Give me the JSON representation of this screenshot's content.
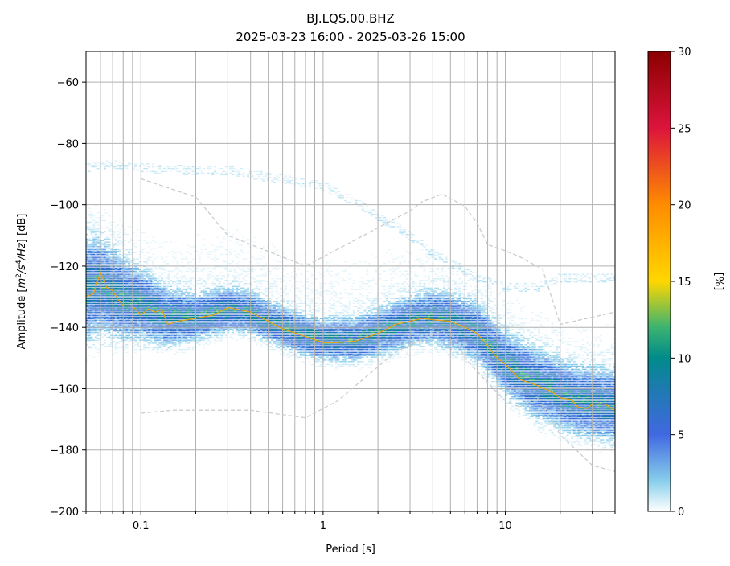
{
  "chart_data": {
    "type": "heatmap",
    "title": "BJ.LQS.00.BHZ",
    "subtitle": "2025-03-23 16:00 - 2025-03-26 15:00",
    "xlabel": "Period [s]",
    "ylabel_parts": [
      "Amplitude [",
      "m",
      "2",
      "/",
      "s",
      "4",
      "/",
      "Hz",
      "] [dB]"
    ],
    "xscale": "log",
    "xlim": [
      0.05,
      40
    ],
    "ylim": [
      -200,
      -50
    ],
    "xticks": [
      {
        "v": 0.1,
        "label": "0.1"
      },
      {
        "v": 1,
        "label": "1"
      },
      {
        "v": 10,
        "label": "10"
      }
    ],
    "yticks": [
      {
        "v": -60,
        "label": "−60"
      },
      {
        "v": -80,
        "label": "−80"
      },
      {
        "v": -100,
        "label": "−100"
      },
      {
        "v": -120,
        "label": "−120"
      },
      {
        "v": -140,
        "label": "−140"
      },
      {
        "v": -160,
        "label": "−160"
      },
      {
        "v": -180,
        "label": "−180"
      },
      {
        "v": -200,
        "label": "−200"
      }
    ],
    "grid": true,
    "colorbar": {
      "label": "[%]",
      "range": [
        0,
        30
      ],
      "ticks": [
        {
          "v": 0,
          "label": "0"
        },
        {
          "v": 5,
          "label": "5"
        },
        {
          "v": 10,
          "label": "10"
        },
        {
          "v": 15,
          "label": "15"
        },
        {
          "v": 20,
          "label": "20"
        },
        {
          "v": 25,
          "label": "25"
        },
        {
          "v": 30,
          "label": "30"
        }
      ],
      "stops": [
        {
          "v": 0,
          "color": "#ffffff"
        },
        {
          "v": 2,
          "color": "#87ceeb"
        },
        {
          "v": 5,
          "color": "#4169e1"
        },
        {
          "v": 8,
          "color": "#1e7ab0"
        },
        {
          "v": 10,
          "color": "#008b8b"
        },
        {
          "v": 12,
          "color": "#3cb371"
        },
        {
          "v": 15,
          "color": "#ffd700"
        },
        {
          "v": 20,
          "color": "#ff8c00"
        },
        {
          "v": 25,
          "color": "#dc143c"
        },
        {
          "v": 30,
          "color": "#8b0000"
        }
      ]
    },
    "mode_curve": {
      "color": "#e3a21a",
      "points": [
        [
          0.05,
          -130
        ],
        [
          0.055,
          -129
        ],
        [
          0.06,
          -122
        ],
        [
          0.065,
          -127
        ],
        [
          0.07,
          -128
        ],
        [
          0.075,
          -131
        ],
        [
          0.08,
          -133
        ],
        [
          0.09,
          -133
        ],
        [
          0.1,
          -136
        ],
        [
          0.11,
          -134
        ],
        [
          0.12,
          -135
        ],
        [
          0.13,
          -134
        ],
        [
          0.14,
          -139
        ],
        [
          0.16,
          -138
        ],
        [
          0.2,
          -137
        ],
        [
          0.25,
          -136
        ],
        [
          0.3,
          -133.5
        ],
        [
          0.4,
          -135
        ],
        [
          0.5,
          -138
        ],
        [
          0.6,
          -140.5
        ],
        [
          0.8,
          -143
        ],
        [
          1.0,
          -145
        ],
        [
          1.2,
          -145
        ],
        [
          1.5,
          -144.5
        ],
        [
          2.0,
          -142
        ],
        [
          2.5,
          -139
        ],
        [
          3.0,
          -138
        ],
        [
          3.5,
          -137
        ],
        [
          4.0,
          -137.5
        ],
        [
          5.0,
          -138
        ],
        [
          6.0,
          -140
        ],
        [
          7.0,
          -142
        ],
        [
          8.0,
          -146
        ],
        [
          9.0,
          -150
        ],
        [
          10,
          -152
        ],
        [
          12,
          -157
        ],
        [
          15,
          -159
        ],
        [
          18,
          -161
        ],
        [
          20,
          -163
        ],
        [
          23,
          -163.5
        ],
        [
          25,
          -166
        ],
        [
          28,
          -166.5
        ],
        [
          30,
          -165
        ],
        [
          35,
          -165
        ],
        [
          40,
          -167
        ]
      ]
    },
    "noise_models": [
      {
        "name": "",
        "color": "#cccccc",
        "points": [
          [
            0.1,
            -91.5
          ],
          [
            0.2,
            -97.5
          ],
          [
            0.3,
            -110
          ],
          [
            0.8,
            -120
          ],
          [
            1,
            -117
          ],
          [
            3,
            -102
          ],
          [
            3.5,
            -99
          ],
          [
            4.5,
            -96.5
          ],
          [
            6,
            -100.5
          ],
          [
            7,
            -106
          ],
          [
            8,
            -113
          ],
          [
            10,
            -115
          ],
          [
            12,
            -117
          ],
          [
            16,
            -121
          ],
          [
            20,
            -139
          ],
          [
            40,
            -135
          ]
        ]
      },
      {
        "name": "",
        "color": "#cccccc",
        "points": [
          [
            0.1,
            -168
          ],
          [
            0.15,
            -167
          ],
          [
            0.2,
            -167
          ],
          [
            0.4,
            -167
          ],
          [
            0.8,
            -169.5
          ],
          [
            1.2,
            -164
          ],
          [
            2.5,
            -148
          ],
          [
            3.5,
            -144
          ],
          [
            4.5,
            -141
          ],
          [
            5,
            -141
          ],
          [
            6,
            -150
          ],
          [
            8,
            -158
          ],
          [
            10,
            -164
          ],
          [
            12,
            -166
          ],
          [
            15,
            -163
          ],
          [
            20,
            -175
          ],
          [
            30,
            -185
          ],
          [
            40,
            -187
          ]
        ]
      }
    ],
    "density": {
      "median": [
        [
          0.05,
          -128
        ],
        [
          0.06,
          -127
        ],
        [
          0.08,
          -131
        ],
        [
          0.1,
          -133
        ],
        [
          0.14,
          -137
        ],
        [
          0.2,
          -137
        ],
        [
          0.3,
          -134.5
        ],
        [
          0.4,
          -135.5
        ],
        [
          0.5,
          -138.5
        ],
        [
          0.8,
          -143
        ],
        [
          1,
          -144.5
        ],
        [
          1.5,
          -144.5
        ],
        [
          2,
          -142
        ],
        [
          3,
          -138.5
        ],
        [
          4,
          -137
        ],
        [
          5,
          -138.5
        ],
        [
          7,
          -142
        ],
        [
          10,
          -152
        ],
        [
          15,
          -159
        ],
        [
          20,
          -162
        ],
        [
          25,
          -164.5
        ],
        [
          30,
          -165
        ],
        [
          40,
          -166
        ]
      ],
      "halfwidth": [
        [
          0.05,
          9
        ],
        [
          0.1,
          6
        ],
        [
          0.2,
          4
        ],
        [
          0.5,
          3.5
        ],
        [
          1,
          3.5
        ],
        [
          2,
          4
        ],
        [
          4,
          4.5
        ],
        [
          8,
          5
        ],
        [
          15,
          6
        ],
        [
          40,
          6
        ]
      ],
      "outliers": [
        [
          0.05,
          -88
        ],
        [
          0.07,
          -87
        ],
        [
          0.1,
          -88
        ],
        [
          0.2,
          -89
        ],
        [
          0.3,
          -89
        ],
        [
          0.5,
          -91
        ],
        [
          1,
          -94
        ],
        [
          1.5,
          -99
        ],
        [
          2,
          -104
        ],
        [
          3,
          -110
        ],
        [
          4,
          -116
        ],
        [
          5,
          -119
        ],
        [
          7,
          -124
        ],
        [
          10,
          -127
        ],
        [
          15,
          -127
        ],
        [
          20,
          -124
        ],
        [
          40,
          -124
        ]
      ]
    }
  }
}
